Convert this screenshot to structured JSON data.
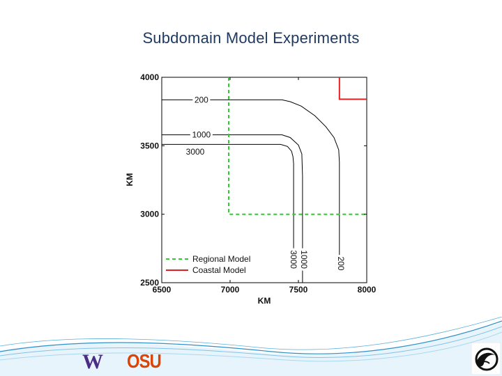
{
  "slide": {
    "title": "Subdomain Model Experiments"
  },
  "logos": {
    "uw": "W",
    "osu": "OSU",
    "emblem": "wave-emblem-icon"
  },
  "colors": {
    "title": "#1f3a60",
    "regional": "#2ecc2e",
    "coastal": "#e02020",
    "contour": "#000000",
    "footer_wave": "#2f8fc8"
  },
  "chart_data": {
    "type": "line",
    "xlabel": "KM",
    "ylabel": "KM",
    "xlim": [
      6500,
      8000
    ],
    "ylim": [
      2500,
      4000
    ],
    "xticks": [
      6500,
      7000,
      7500,
      8000
    ],
    "yticks": [
      2500,
      3000,
      3500,
      4000
    ],
    "grid": false,
    "legend_position": "bottom-left",
    "legend": [
      {
        "label": "Regional Model",
        "style": "dashed",
        "color": "#2ecc2e"
      },
      {
        "label": "Coastal Model",
        "style": "solid",
        "color": "#e02020"
      }
    ],
    "series": [
      {
        "name": "Regional Model",
        "style": "dashed",
        "color": "#2ecc2e",
        "x": [
          6990,
          6990,
          8000
        ],
        "y": [
          4000,
          3000,
          3000
        ]
      },
      {
        "name": "Coastal Model",
        "style": "solid",
        "color": "#e02020",
        "x": [
          7800,
          7800,
          8000
        ],
        "y": [
          4000,
          3840,
          3840
        ]
      }
    ],
    "contours": [
      {
        "label": "200",
        "x": [
          6500,
          7380,
          7440,
          7520,
          7620,
          7700,
          7760,
          7795,
          7800,
          7800
        ],
        "y": [
          3835,
          3835,
          3822,
          3790,
          3720,
          3640,
          3560,
          3470,
          3380,
          2700
        ]
      },
      {
        "label": "1000",
        "x": [
          6500,
          7380,
          7440,
          7500,
          7525,
          7530
        ],
        "y": [
          3580,
          3580,
          3560,
          3505,
          3440,
          3280
        ]
      },
      {
        "label": "3000",
        "x": [
          6500,
          7370,
          7420,
          7450,
          7460,
          7465
        ],
        "y": [
          3510,
          3510,
          3495,
          3460,
          3420,
          3370
        ]
      }
    ],
    "contour_labels": [
      {
        "text": "200",
        "x": 6790,
        "y": 3835,
        "rotate": 0
      },
      {
        "text": "1000",
        "x": 6790,
        "y": 3580,
        "rotate": 0
      },
      {
        "text": "3000",
        "x": 6745,
        "y": 3455,
        "rotate": 0
      },
      {
        "text": "3000",
        "x": 7465,
        "y": 2670,
        "rotate": 90
      },
      {
        "text": "1000",
        "x": 7540,
        "y": 2670,
        "rotate": 90
      },
      {
        "text": "200",
        "x": 7810,
        "y": 2640,
        "rotate": 90
      }
    ],
    "vertical_contour_extensions": [
      {
        "label": "3000",
        "x": [
          7465,
          7465
        ],
        "y": [
          3370,
          2700
        ]
      },
      {
        "label": "1000",
        "x": [
          7530,
          7530
        ],
        "y": [
          3280,
          2500
        ]
      }
    ]
  }
}
